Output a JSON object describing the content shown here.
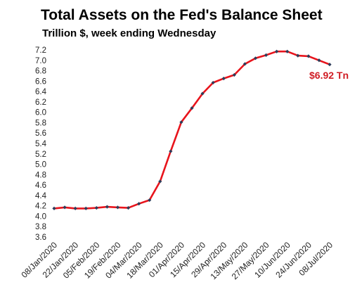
{
  "chart_data": {
    "type": "line",
    "title": "Total Assets on the Fed's Balance Sheet",
    "subtitle": "Trillion $, week ending Wednesday",
    "xlabel": "",
    "ylabel": "",
    "ylim": [
      3.6,
      7.2
    ],
    "yticks": [
      "3.6",
      "3.8",
      "4.0",
      "4.2",
      "4.4",
      "4.6",
      "4.8",
      "5.0",
      "5.2",
      "5.4",
      "5.6",
      "5.8",
      "6.0",
      "6.2",
      "6.4",
      "6.6",
      "6.8",
      "7.0",
      "7.2"
    ],
    "x_tick_labels": [
      "08/Jan/2020",
      "22/Jan/2020",
      "05/Feb/2020",
      "19/Feb/2020",
      "04/Mar/2020",
      "18/Mar/2020",
      "01/Apr/2020",
      "15/Apr/2020",
      "29/Apr/2020",
      "13/May/2020",
      "27/May/2020",
      "10/Jun/2020",
      "24/Jun/2020",
      "08/Jul/2020"
    ],
    "x": [
      "08/Jan/2020",
      "15/Jan/2020",
      "22/Jan/2020",
      "29/Jan/2020",
      "05/Feb/2020",
      "12/Feb/2020",
      "19/Feb/2020",
      "26/Feb/2020",
      "04/Mar/2020",
      "11/Mar/2020",
      "18/Mar/2020",
      "25/Mar/2020",
      "01/Apr/2020",
      "08/Apr/2020",
      "15/Apr/2020",
      "22/Apr/2020",
      "29/Apr/2020",
      "06/May/2020",
      "13/May/2020",
      "20/May/2020",
      "27/May/2020",
      "03/Jun/2020",
      "10/Jun/2020",
      "17/Jun/2020",
      "24/Jun/2020",
      "01/Jul/2020",
      "08/Jul/2020"
    ],
    "series": [
      {
        "values": [
          4.15,
          4.17,
          4.15,
          4.15,
          4.16,
          4.18,
          4.17,
          4.16,
          4.24,
          4.31,
          4.67,
          5.25,
          5.81,
          6.08,
          6.36,
          6.57,
          6.65,
          6.72,
          6.93,
          7.04,
          7.1,
          7.17,
          7.17,
          7.09,
          7.08,
          7.0,
          6.92
        ],
        "line_color": "#e8141c",
        "marker_color": "#2f3d5a"
      }
    ],
    "annotation": {
      "text": "$6.92 Tn",
      "color": "#d01c24"
    },
    "grid": false,
    "legend": "none"
  }
}
